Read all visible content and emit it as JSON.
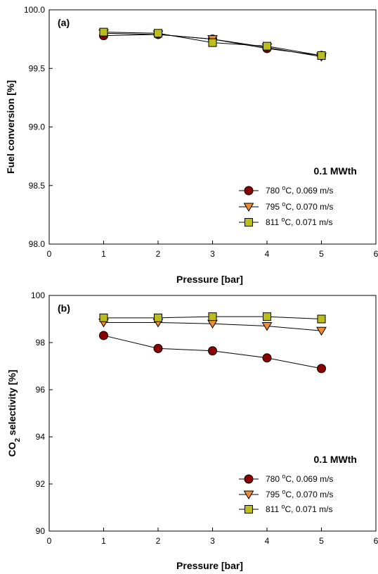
{
  "chart_data": [
    {
      "type": "line",
      "panel_label": "(a)",
      "xlabel": "Pressure [bar]",
      "ylabel": "Fuel conversion [%]",
      "xlim": [
        0,
        6
      ],
      "ylim": [
        98.0,
        100.0
      ],
      "xticks": [
        "0",
        "1",
        "2",
        "3",
        "4",
        "5",
        "6"
      ],
      "yticks": [
        "98.0",
        "98.5",
        "99.0",
        "99.5",
        "100.0"
      ],
      "legend_title": "0.1 MWth",
      "legend_position": "lower-right",
      "grid": false,
      "x": [
        1,
        2,
        3,
        4,
        5
      ],
      "series": [
        {
          "name": "780 oC, 0.069 m/s",
          "label_pre": "780 ",
          "label_sup": "o",
          "label_post": "C, 0.069 m/s",
          "marker": "circle",
          "color": "#8b0000",
          "values": [
            99.78,
            99.79,
            99.75,
            99.67,
            99.61
          ]
        },
        {
          "name": "795 oC, 0.070 m/s",
          "label_pre": "795 ",
          "label_sup": "o",
          "label_post": "C, 0.070 m/s",
          "marker": "triangle-down",
          "color": "#f08c32",
          "values": [
            99.8,
            99.79,
            99.75,
            99.68,
            99.6
          ]
        },
        {
          "name": "811 oC, 0.071 m/s",
          "label_pre": "811 ",
          "label_sup": "o",
          "label_post": "C, 0.071 m/s",
          "marker": "square",
          "color": "#bcbc1c",
          "values": [
            99.81,
            99.8,
            99.72,
            99.69,
            99.61
          ]
        }
      ]
    },
    {
      "type": "line",
      "panel_label": "(b)",
      "xlabel": "Pressure [bar]",
      "ylabel_pre": "CO",
      "ylabel_sub": "2",
      "ylabel_post": " selectivity [%]",
      "xlim": [
        0,
        6
      ],
      "ylim": [
        90,
        100
      ],
      "xticks": [
        "0",
        "1",
        "2",
        "3",
        "4",
        "5",
        "6"
      ],
      "yticks": [
        "90",
        "92",
        "94",
        "96",
        "98",
        "100"
      ],
      "legend_title": "0.1 MWth",
      "legend_position": "lower-right",
      "grid": false,
      "x": [
        1,
        2,
        3,
        4,
        5
      ],
      "series": [
        {
          "name": "780 oC, 0.069 m/s",
          "label_pre": "780 ",
          "label_sup": "o",
          "label_post": "C, 0.069 m/s",
          "marker": "circle",
          "color": "#8b0000",
          "values": [
            98.3,
            97.75,
            97.65,
            97.35,
            96.9
          ]
        },
        {
          "name": "795 oC, 0.070 m/s",
          "label_pre": "795 ",
          "label_sup": "o",
          "label_post": "C, 0.070 m/s",
          "marker": "triangle-down",
          "color": "#f08c32",
          "values": [
            98.85,
            98.85,
            98.8,
            98.7,
            98.5
          ]
        },
        {
          "name": "811 oC, 0.071 m/s",
          "label_pre": "811 ",
          "label_sup": "o",
          "label_post": "C, 0.071 m/s",
          "marker": "square",
          "color": "#bcbc1c",
          "values": [
            99.05,
            99.05,
            99.1,
            99.1,
            99.0
          ]
        }
      ]
    }
  ]
}
